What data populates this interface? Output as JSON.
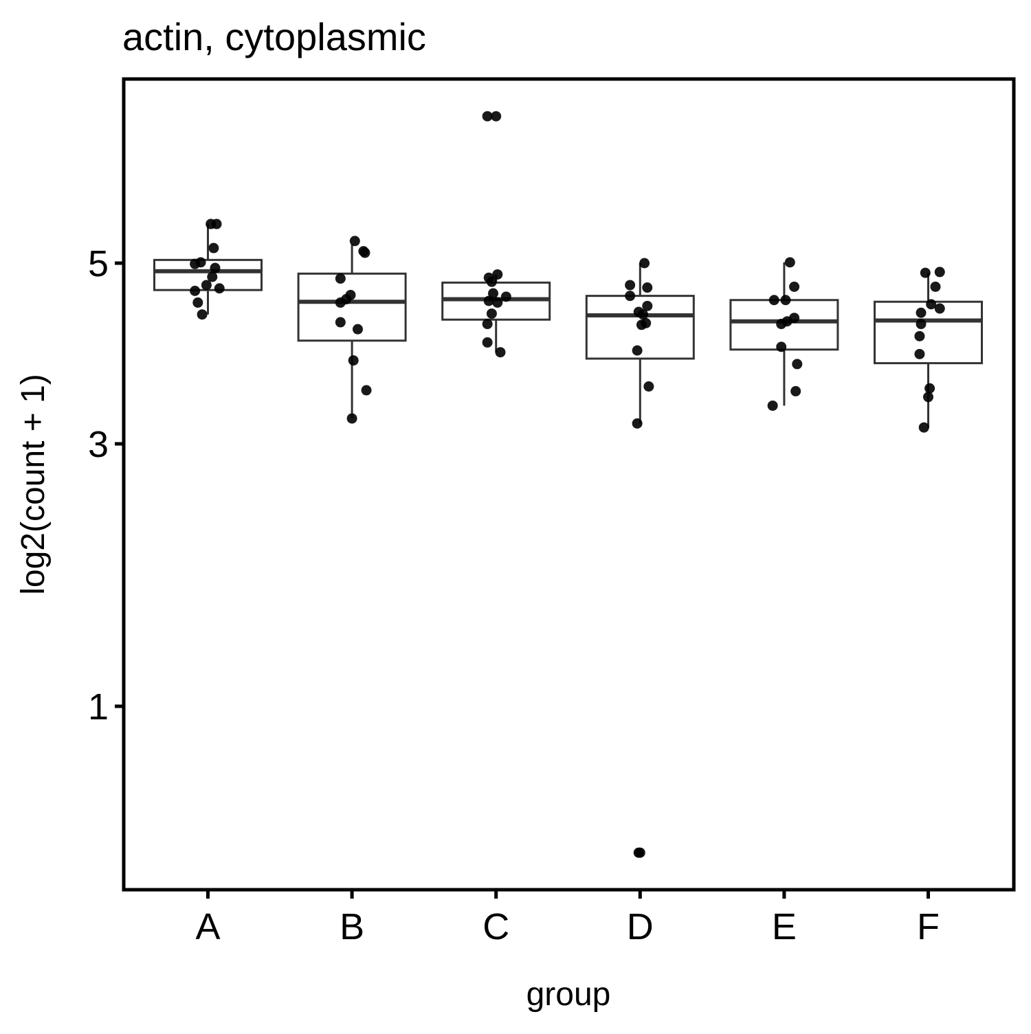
{
  "chart_data": {
    "type": "box",
    "title": "actin, cytoplasmic",
    "xlabel": "group",
    "ylabel": "log2(count + 1)",
    "y_scale": "sqrt",
    "ylim": [
      0.35,
      7.2
    ],
    "y_ticks": [
      1,
      3,
      5
    ],
    "y_tick_labels": [
      "1",
      "3",
      "5"
    ],
    "grid": false,
    "categories": [
      "A",
      "B",
      "C",
      "D",
      "E",
      "F"
    ],
    "boxes": [
      {
        "group": "A",
        "q1": 4.67,
        "median": 4.9,
        "q3": 5.04,
        "whisker_low": 4.38,
        "whisker_high": 5.5
      },
      {
        "group": "B",
        "q1": 4.08,
        "median": 4.53,
        "q3": 4.87,
        "whisker_low": 3.25,
        "whisker_high": 5.24
      },
      {
        "group": "C",
        "q1": 4.32,
        "median": 4.56,
        "q3": 4.76,
        "whisker_low": 3.95,
        "whisker_high": 4.86
      },
      {
        "group": "D",
        "q1": 3.88,
        "median": 4.37,
        "q3": 4.6,
        "whisker_low": 3.2,
        "whisker_high": 5.0
      },
      {
        "group": "E",
        "q1": 3.98,
        "median": 4.3,
        "q3": 4.55,
        "whisker_low": 3.38,
        "whisker_high": 5.01
      },
      {
        "group": "F",
        "q1": 3.83,
        "median": 4.31,
        "q3": 4.53,
        "whisker_low": 3.16,
        "whisker_high": 4.88
      }
    ],
    "points": [
      {
        "group": "A",
        "x_offset": -0.05,
        "y": 5.01
      },
      {
        "group": "A",
        "x_offset": -0.09,
        "y": 4.99
      },
      {
        "group": "A",
        "x_offset": 0.02,
        "y": 5.5
      },
      {
        "group": "A",
        "x_offset": 0.06,
        "y": 5.5
      },
      {
        "group": "A",
        "x_offset": 0.04,
        "y": 5.19
      },
      {
        "group": "A",
        "x_offset": 0.05,
        "y": 4.94
      },
      {
        "group": "A",
        "x_offset": 0.03,
        "y": 4.83
      },
      {
        "group": "A",
        "x_offset": -0.01,
        "y": 4.73
      },
      {
        "group": "A",
        "x_offset": 0.08,
        "y": 4.69
      },
      {
        "group": "A",
        "x_offset": -0.09,
        "y": 4.66
      },
      {
        "group": "A",
        "x_offset": -0.07,
        "y": 4.52
      },
      {
        "group": "A",
        "x_offset": -0.04,
        "y": 4.38
      },
      {
        "group": "B",
        "x_offset": 0.02,
        "y": 5.28
      },
      {
        "group": "B",
        "x_offset": 0.08,
        "y": 5.15
      },
      {
        "group": "B",
        "x_offset": 0.09,
        "y": 5.13
      },
      {
        "group": "B",
        "x_offset": -0.08,
        "y": 4.81
      },
      {
        "group": "B",
        "x_offset": -0.01,
        "y": 4.61
      },
      {
        "group": "B",
        "x_offset": -0.04,
        "y": 4.56
      },
      {
        "group": "B",
        "x_offset": -0.08,
        "y": 4.52
      },
      {
        "group": "B",
        "x_offset": -0.08,
        "y": 4.29
      },
      {
        "group": "B",
        "x_offset": 0.04,
        "y": 4.21
      },
      {
        "group": "B",
        "x_offset": 0.01,
        "y": 3.86
      },
      {
        "group": "B",
        "x_offset": 0.1,
        "y": 3.54
      },
      {
        "group": "B",
        "x_offset": 0.0,
        "y": 3.25
      },
      {
        "group": "C",
        "x_offset": -0.06,
        "y": 7.0
      },
      {
        "group": "C",
        "x_offset": 0.0,
        "y": 7.0
      },
      {
        "group": "C",
        "x_offset": 0.01,
        "y": 4.86
      },
      {
        "group": "C",
        "x_offset": -0.05,
        "y": 4.82
      },
      {
        "group": "C",
        "x_offset": -0.03,
        "y": 4.77
      },
      {
        "group": "C",
        "x_offset": -0.02,
        "y": 4.63
      },
      {
        "group": "C",
        "x_offset": 0.07,
        "y": 4.59
      },
      {
        "group": "C",
        "x_offset": -0.05,
        "y": 4.54
      },
      {
        "group": "C",
        "x_offset": 0.01,
        "y": 4.52
      },
      {
        "group": "C",
        "x_offset": -0.03,
        "y": 4.39
      },
      {
        "group": "C",
        "x_offset": -0.06,
        "y": 4.27
      },
      {
        "group": "C",
        "x_offset": -0.06,
        "y": 4.06
      },
      {
        "group": "C",
        "x_offset": 0.03,
        "y": 3.95
      },
      {
        "group": "D",
        "x_offset": 0.03,
        "y": 5.0
      },
      {
        "group": "D",
        "x_offset": -0.07,
        "y": 4.73
      },
      {
        "group": "D",
        "x_offset": 0.05,
        "y": 4.7
      },
      {
        "group": "D",
        "x_offset": -0.07,
        "y": 4.6
      },
      {
        "group": "D",
        "x_offset": 0.05,
        "y": 4.48
      },
      {
        "group": "D",
        "x_offset": -0.01,
        "y": 4.41
      },
      {
        "group": "D",
        "x_offset": 0.02,
        "y": 4.38
      },
      {
        "group": "D",
        "x_offset": 0.04,
        "y": 4.28
      },
      {
        "group": "D",
        "x_offset": 0.01,
        "y": 4.26
      },
      {
        "group": "D",
        "x_offset": -0.02,
        "y": 3.97
      },
      {
        "group": "D",
        "x_offset": 0.06,
        "y": 3.58
      },
      {
        "group": "D",
        "x_offset": -0.02,
        "y": 3.2
      },
      {
        "group": "D",
        "x_offset": -0.01,
        "y": 0.35
      },
      {
        "group": "D",
        "x_offset": 0.0,
        "y": 0.35
      },
      {
        "group": "E",
        "x_offset": 0.04,
        "y": 5.01
      },
      {
        "group": "E",
        "x_offset": 0.07,
        "y": 4.71
      },
      {
        "group": "E",
        "x_offset": -0.07,
        "y": 4.55
      },
      {
        "group": "E",
        "x_offset": 0.01,
        "y": 4.55
      },
      {
        "group": "E",
        "x_offset": 0.07,
        "y": 4.34
      },
      {
        "group": "E",
        "x_offset": 0.02,
        "y": 4.3
      },
      {
        "group": "E",
        "x_offset": -0.02,
        "y": 4.27
      },
      {
        "group": "E",
        "x_offset": -0.02,
        "y": 4.01
      },
      {
        "group": "E",
        "x_offset": 0.09,
        "y": 3.82
      },
      {
        "group": "E",
        "x_offset": 0.08,
        "y": 3.53
      },
      {
        "group": "E",
        "x_offset": -0.08,
        "y": 3.38
      },
      {
        "group": "F",
        "x_offset": 0.08,
        "y": 4.89
      },
      {
        "group": "F",
        "x_offset": -0.02,
        "y": 4.88
      },
      {
        "group": "F",
        "x_offset": 0.05,
        "y": 4.71
      },
      {
        "group": "F",
        "x_offset": 0.02,
        "y": 4.5
      },
      {
        "group": "F",
        "x_offset": 0.08,
        "y": 4.45
      },
      {
        "group": "F",
        "x_offset": -0.05,
        "y": 4.4
      },
      {
        "group": "F",
        "x_offset": -0.05,
        "y": 4.27
      },
      {
        "group": "F",
        "x_offset": -0.06,
        "y": 4.13
      },
      {
        "group": "F",
        "x_offset": -0.06,
        "y": 3.93
      },
      {
        "group": "F",
        "x_offset": 0.01,
        "y": 3.56
      },
      {
        "group": "F",
        "x_offset": 0.0,
        "y": 3.47
      },
      {
        "group": "F",
        "x_offset": -0.03,
        "y": 3.16
      }
    ],
    "colors": {
      "points": "#000000",
      "box_stroke": "#333333",
      "frame": "#000000",
      "background": "#ffffff"
    }
  }
}
